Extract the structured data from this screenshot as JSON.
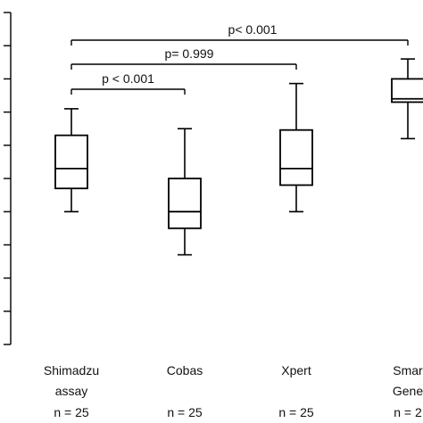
{
  "chart_data": {
    "type": "box",
    "title": "",
    "xlabel": "",
    "ylabel": "",
    "categories": [
      {
        "line1": "Shimadzu",
        "line2": "assay",
        "n": "n = 25"
      },
      {
        "line1": "Cobas",
        "line2": "",
        "n": "n = 25"
      },
      {
        "line1": "Xpert",
        "line2": "",
        "n": "n = 25"
      },
      {
        "line1": "Smar",
        "line2": "Gene",
        "n": "n = 2"
      }
    ],
    "boxes": [
      {
        "min": 2.0,
        "q1": 2.35,
        "median": 2.65,
        "q3": 3.15,
        "max": 3.55
      },
      {
        "min": 1.35,
        "q1": 1.75,
        "median": 2.0,
        "q3": 2.5,
        "max": 3.25
      },
      {
        "min": 2.0,
        "q1": 2.4,
        "median": 2.65,
        "q3": 3.23,
        "max": 3.93
      },
      {
        "min": 3.1,
        "q1": 3.65,
        "median": 3.7,
        "q3": 4.0,
        "max": 4.3
      }
    ],
    "ylim": [
      0,
      5
    ],
    "yticks": [
      0,
      0.5,
      1,
      1.5,
      2,
      2.5,
      3,
      3.5,
      4,
      4.5,
      5
    ],
    "annotations": [
      {
        "from": 0,
        "to": 1,
        "label": "p < 0.001"
      },
      {
        "from": 0,
        "to": 2,
        "label": "p= 0.999"
      },
      {
        "from": 0,
        "to": 3,
        "label": "p< 0.001"
      }
    ]
  }
}
